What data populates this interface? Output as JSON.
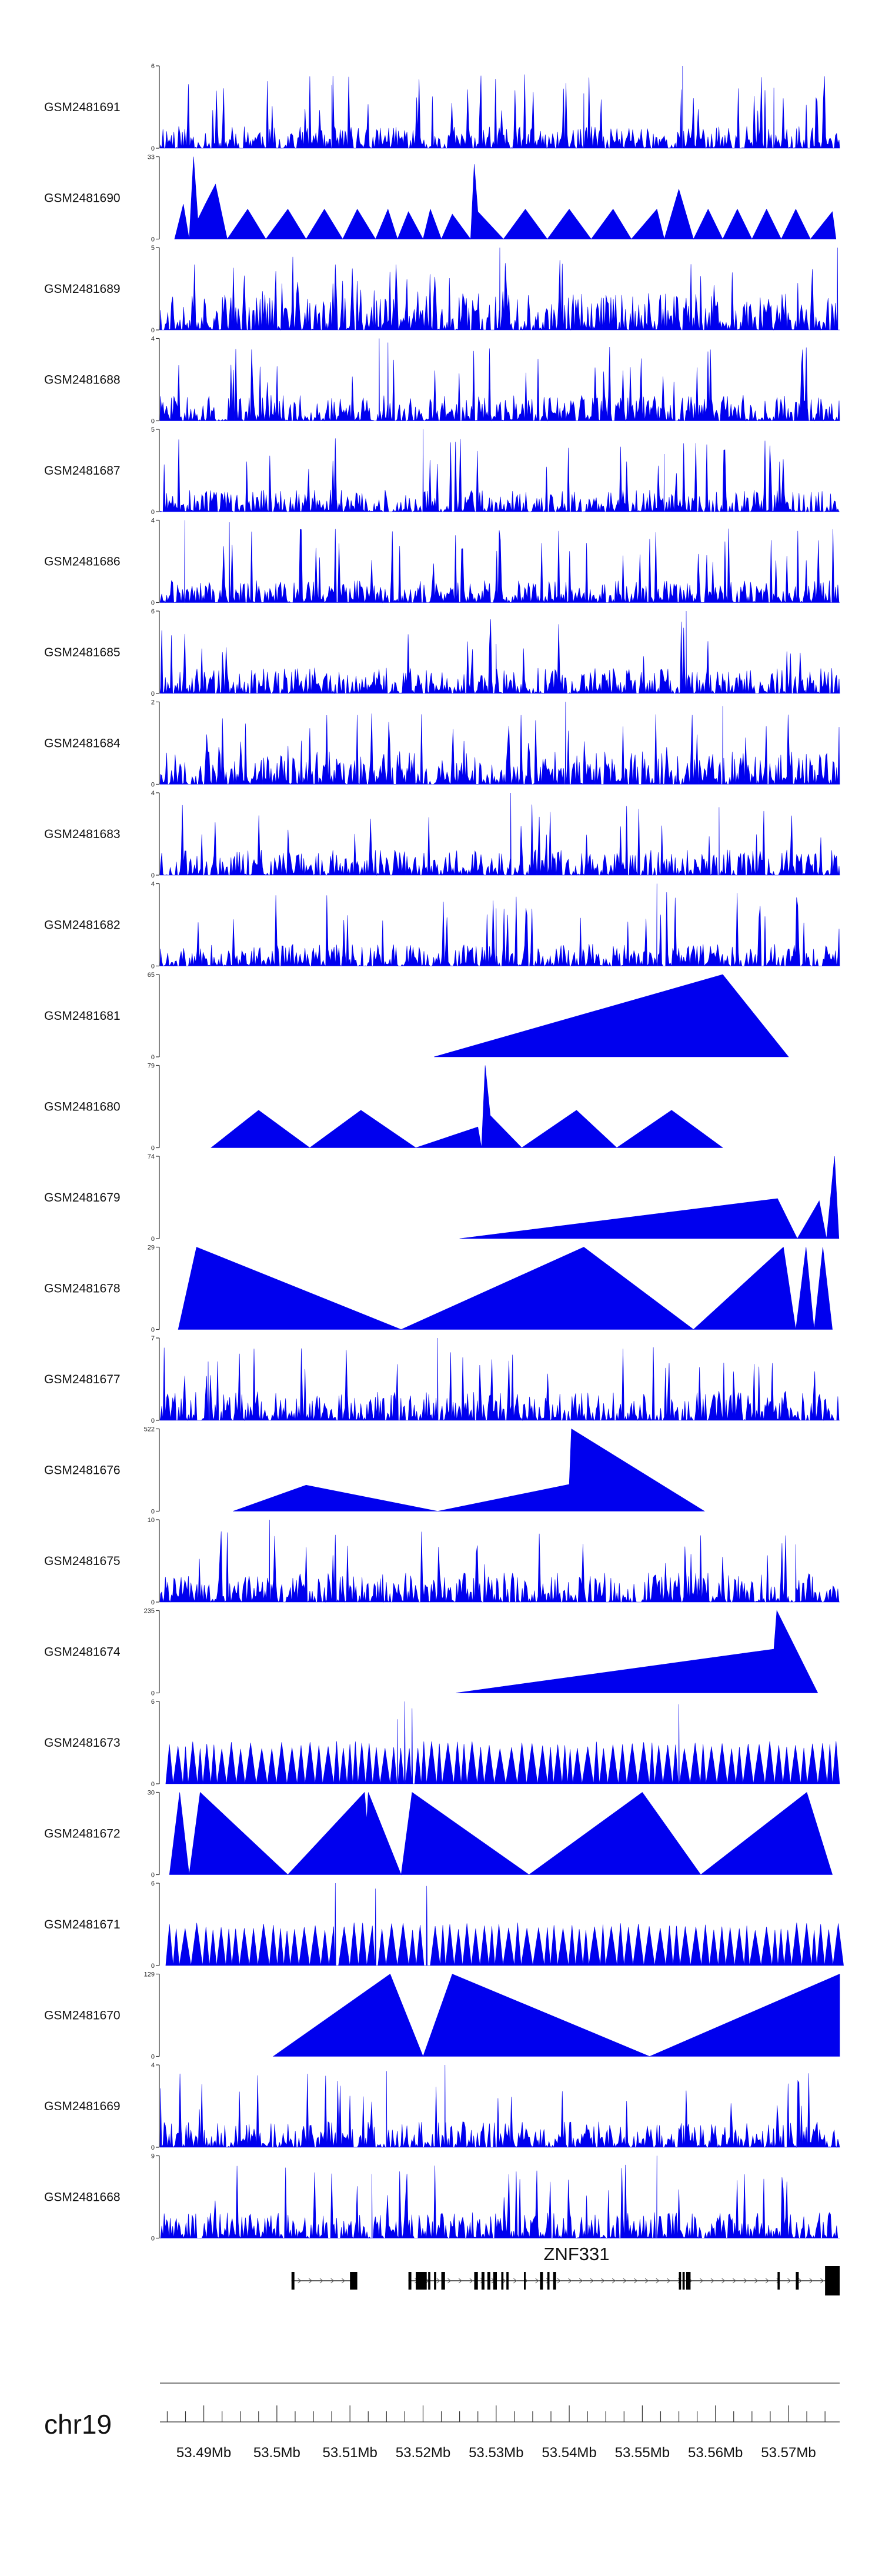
{
  "colors": {
    "signal": "#0000ee",
    "axis": "#333333",
    "gene": "#000000",
    "text": "#111111"
  },
  "chromosome": "chr19",
  "gene": {
    "name": "ZNF331"
  },
  "chart_data": {
    "type": "area",
    "genomic_range": [
      53484000,
      53577000
    ],
    "x_ticks": [
      {
        "pos": 53490000,
        "label": "53.49Mb"
      },
      {
        "pos": 53500000,
        "label": "53.5Mb"
      },
      {
        "pos": 53510000,
        "label": "53.51Mb"
      },
      {
        "pos": 53520000,
        "label": "53.52Mb"
      },
      {
        "pos": 53530000,
        "label": "53.53Mb"
      },
      {
        "pos": 53540000,
        "label": "53.54Mb"
      },
      {
        "pos": 53550000,
        "label": "53.55Mb"
      },
      {
        "pos": 53560000,
        "label": "53.56Mb"
      },
      {
        "pos": 53570000,
        "label": "53.57Mb"
      }
    ],
    "tracks": [
      {
        "name": "GSM2481691",
        "ylim": [
          0,
          6
        ],
        "pattern": "dense",
        "seed": 11,
        "base": 0.3,
        "peaks": [
          {
            "pos": 53507500,
            "value": 4.6
          },
          {
            "pos": 53555500,
            "value": 6
          },
          {
            "pos": 53542000,
            "value": 4
          },
          {
            "pos": 53568000,
            "value": 4.4
          }
        ]
      },
      {
        "name": "GSM2481690",
        "ylim": [
          0,
          33
        ],
        "pattern": "sparse",
        "seed": 23,
        "points": [
          [
            53486000,
            0
          ],
          [
            53487200,
            14
          ],
          [
            53488000,
            0
          ],
          [
            53488600,
            33
          ],
          [
            53489200,
            8
          ],
          [
            53490200,
            14
          ],
          [
            53491600,
            22
          ],
          [
            53493200,
            0
          ],
          [
            53496000,
            12
          ],
          [
            53498500,
            0
          ],
          [
            53501500,
            12
          ],
          [
            53504000,
            0
          ],
          [
            53506500,
            12
          ],
          [
            53509000,
            0
          ],
          [
            53511000,
            12
          ],
          [
            53513500,
            0
          ],
          [
            53515200,
            12
          ],
          [
            53516500,
            0
          ],
          [
            53518000,
            11
          ],
          [
            53520000,
            0
          ],
          [
            53521000,
            12
          ],
          [
            53522500,
            0
          ],
          [
            53524000,
            10
          ],
          [
            53526500,
            0
          ],
          [
            53527000,
            30
          ],
          [
            53527500,
            11
          ],
          [
            53531000,
            0
          ],
          [
            53534000,
            12
          ],
          [
            53537000,
            0
          ],
          [
            53540000,
            12
          ],
          [
            53543000,
            0
          ],
          [
            53546000,
            12
          ],
          [
            53548500,
            0
          ],
          [
            53552000,
            12
          ],
          [
            53553000,
            0
          ],
          [
            53555000,
            20
          ],
          [
            53557000,
            0
          ],
          [
            53559000,
            12
          ],
          [
            53561000,
            0
          ],
          [
            53563000,
            12
          ],
          [
            53565000,
            0
          ],
          [
            53567000,
            12
          ],
          [
            53569000,
            0
          ],
          [
            53571000,
            12
          ],
          [
            53573000,
            0
          ],
          [
            53576000,
            11
          ],
          [
            53576500,
            0
          ]
        ]
      },
      {
        "name": "GSM2481689",
        "ylim": [
          0,
          5
        ],
        "pattern": "dense",
        "seed": 37,
        "base": 0.5,
        "peaks": [
          {
            "pos": 53530500,
            "value": 5
          },
          {
            "pos": 53576700,
            "value": 5
          }
        ]
      },
      {
        "name": "GSM2481688",
        "ylim": [
          0,
          4
        ],
        "pattern": "dense",
        "seed": 51,
        "base": 0.35,
        "peaks": [
          {
            "pos": 53514000,
            "value": 4
          },
          {
            "pos": 53515200,
            "value": 3.8
          }
        ]
      },
      {
        "name": "GSM2481687",
        "ylim": [
          0,
          5
        ],
        "pattern": "dense",
        "seed": 64,
        "base": 0.3,
        "peaks": [
          {
            "pos": 53520000,
            "value": 5
          },
          {
            "pos": 53553000,
            "value": 3.5
          }
        ]
      },
      {
        "name": "GSM2481686",
        "ylim": [
          0,
          4
        ],
        "pattern": "dense",
        "seed": 77,
        "base": 0.3,
        "peaks": [
          {
            "pos": 53487400,
            "value": 4
          },
          {
            "pos": 53493500,
            "value": 3.9
          }
        ]
      },
      {
        "name": "GSM2481685",
        "ylim": [
          0,
          6
        ],
        "pattern": "dense",
        "seed": 89,
        "base": 0.35,
        "peaks": [
          {
            "pos": 53556000,
            "value": 6
          },
          {
            "pos": 53530000,
            "value": 3.6
          }
        ]
      },
      {
        "name": "GSM2481684",
        "ylim": [
          0,
          2
        ],
        "pattern": "dense",
        "seed": 101,
        "base": 0.45,
        "peaks": [
          {
            "pos": 53539500,
            "value": 2
          },
          {
            "pos": 53561000,
            "value": 1.9
          }
        ]
      },
      {
        "name": "GSM2481683",
        "ylim": [
          0,
          4
        ],
        "pattern": "dense",
        "seed": 113,
        "base": 0.35,
        "peaks": [
          {
            "pos": 53532000,
            "value": 4
          },
          {
            "pos": 53560500,
            "value": 3.3
          }
        ]
      },
      {
        "name": "GSM2481682",
        "ylim": [
          0,
          4
        ],
        "pattern": "dense",
        "seed": 127,
        "base": 0.3,
        "peaks": [
          {
            "pos": 53552000,
            "value": 4
          },
          {
            "pos": 53530000,
            "value": 2.8
          }
        ]
      },
      {
        "name": "GSM2481681",
        "ylim": [
          0,
          65
        ],
        "pattern": "sparse",
        "seed": 139,
        "points": [
          [
            53521500,
            0
          ],
          [
            53561000,
            65
          ],
          [
            53570000,
            0
          ]
        ]
      },
      {
        "name": "GSM2481680",
        "ylim": [
          0,
          79
        ],
        "pattern": "sparse",
        "seed": 151,
        "points": [
          [
            53491000,
            0
          ],
          [
            53497500,
            36
          ],
          [
            53504500,
            0
          ],
          [
            53511500,
            36
          ],
          [
            53519000,
            0
          ],
          [
            53527500,
            20
          ],
          [
            53528000,
            0
          ],
          [
            53528500,
            79
          ],
          [
            53529200,
            31
          ],
          [
            53533500,
            0
          ],
          [
            53541000,
            36
          ],
          [
            53546500,
            0
          ],
          [
            53554000,
            36
          ],
          [
            53561000,
            0
          ]
        ]
      },
      {
        "name": "GSM2481679",
        "ylim": [
          0,
          74
        ],
        "pattern": "sparse",
        "seed": 163,
        "points": [
          [
            53525000,
            0
          ],
          [
            53568500,
            36
          ],
          [
            53571200,
            0
          ],
          [
            53574200,
            34
          ],
          [
            53575200,
            0
          ],
          [
            53576300,
            74
          ],
          [
            53576900,
            0
          ]
        ]
      },
      {
        "name": "GSM2481678",
        "ylim": [
          0,
          29
        ],
        "pattern": "sparse",
        "seed": 175,
        "points": [
          [
            53486500,
            0
          ],
          [
            53489000,
            29
          ],
          [
            53517000,
            0
          ],
          [
            53542000,
            29
          ],
          [
            53557000,
            0
          ],
          [
            53569300,
            29
          ],
          [
            53571000,
            0
          ],
          [
            53572400,
            29
          ],
          [
            53573500,
            0
          ],
          [
            53574700,
            29
          ],
          [
            53576000,
            0
          ]
        ]
      },
      {
        "name": "GSM2481677",
        "ylim": [
          0,
          7
        ],
        "pattern": "dense",
        "seed": 187,
        "base": 0.4,
        "peaks": [
          {
            "pos": 53522000,
            "value": 7
          },
          {
            "pos": 53490600,
            "value": 5
          }
        ]
      },
      {
        "name": "GSM2481676",
        "ylim": [
          0,
          522
        ],
        "pattern": "sparse",
        "seed": 199,
        "points": [
          [
            53494000,
            0
          ],
          [
            53504000,
            165
          ],
          [
            53522000,
            0
          ],
          [
            53540000,
            170
          ],
          [
            53540300,
            522
          ],
          [
            53558500,
            0
          ]
        ]
      },
      {
        "name": "GSM2481675",
        "ylim": [
          0,
          10
        ],
        "pattern": "dense",
        "seed": 211,
        "base": 0.4,
        "peaks": [
          {
            "pos": 53499000,
            "value": 10
          },
          {
            "pos": 53571000,
            "value": 7
          }
        ]
      },
      {
        "name": "GSM2481674",
        "ylim": [
          0,
          235
        ],
        "pattern": "sparse",
        "seed": 223,
        "points": [
          [
            53524500,
            0
          ],
          [
            53568000,
            125
          ],
          [
            53568400,
            235
          ],
          [
            53574000,
            0
          ]
        ]
      },
      {
        "name": "GSM2481673",
        "ylim": [
          0,
          6
        ],
        "pattern": "sparse_zigzag",
        "seed": 235,
        "base": 0.65,
        "peaks": [
          {
            "pos": 53516500,
            "value": 4.7
          },
          {
            "pos": 53517500,
            "value": 6
          },
          {
            "pos": 53518500,
            "value": 5.5
          },
          {
            "pos": 53555000,
            "value": 5.8
          }
        ]
      },
      {
        "name": "GSM2481672",
        "ylim": [
          0,
          30
        ],
        "pattern": "sparse",
        "seed": 247,
        "points": [
          [
            53485300,
            0
          ],
          [
            53486700,
            30
          ],
          [
            53488000,
            0
          ],
          [
            53489500,
            30
          ],
          [
            53501500,
            0
          ],
          [
            53512000,
            30
          ],
          [
            53512300,
            20
          ],
          [
            53512500,
            30
          ],
          [
            53517000,
            0
          ],
          [
            53518500,
            30
          ],
          [
            53534500,
            0
          ],
          [
            53550000,
            30
          ],
          [
            53558000,
            0
          ],
          [
            53572500,
            30
          ],
          [
            53576000,
            0
          ]
        ]
      },
      {
        "name": "GSM2481671",
        "ylim": [
          0,
          6
        ],
        "pattern": "sparse_zigzag",
        "seed": 259,
        "base": 0.7,
        "peaks": [
          {
            "pos": 53508000,
            "value": 6
          },
          {
            "pos": 53513500,
            "value": 5.6
          },
          {
            "pos": 53520500,
            "value": 5.8
          }
        ]
      },
      {
        "name": "GSM2481670",
        "ylim": [
          0,
          129
        ],
        "pattern": "sparse",
        "seed": 271,
        "points": [
          [
            53499500,
            0
          ],
          [
            53515500,
            129
          ],
          [
            53520000,
            0
          ],
          [
            53524000,
            129
          ],
          [
            53551000,
            0
          ],
          [
            53577000,
            129
          ],
          [
            53577000,
            0
          ]
        ]
      },
      {
        "name": "GSM2481669",
        "ylim": [
          0,
          4
        ],
        "pattern": "dense",
        "seed": 283,
        "base": 0.35,
        "peaks": [
          {
            "pos": 53515000,
            "value": 3.7
          },
          {
            "pos": 53523000,
            "value": 4
          }
        ]
      },
      {
        "name": "GSM2481668",
        "ylim": [
          0,
          9
        ],
        "pattern": "dense",
        "seed": 295,
        "base": 0.35,
        "peaks": [
          {
            "pos": 53552000,
            "value": 9
          },
          {
            "pos": 53513000,
            "value": 7
          }
        ]
      }
    ],
    "gene_model": {
      "name": "ZNF331",
      "strand": "+",
      "lines": [
        [
          53502000,
          53510500
        ],
        [
          53518000,
          53577000
        ]
      ],
      "exons": [
        [
          53502000,
          53502400
        ],
        [
          53510000,
          53511000
        ],
        [
          53518000,
          53518400
        ],
        [
          53519000,
          53520500
        ],
        [
          53520700,
          53521000
        ],
        [
          53521500,
          53521800
        ],
        [
          53522500,
          53523000
        ],
        [
          53527000,
          53527500
        ],
        [
          53528000,
          53528400
        ],
        [
          53528800,
          53529200
        ],
        [
          53529600,
          53530100
        ],
        [
          53530700,
          53531000
        ],
        [
          53531400,
          53531700
        ],
        [
          53533800,
          53534000
        ],
        [
          53536000,
          53536400
        ],
        [
          53537000,
          53537300
        ],
        [
          53537800,
          53538200
        ],
        [
          53555000,
          53555300
        ],
        [
          53555500,
          53555800
        ],
        [
          53556000,
          53556600
        ],
        [
          53568500,
          53568800
        ],
        [
          53571000,
          53571400
        ],
        [
          53575000,
          53577000
        ]
      ]
    }
  }
}
